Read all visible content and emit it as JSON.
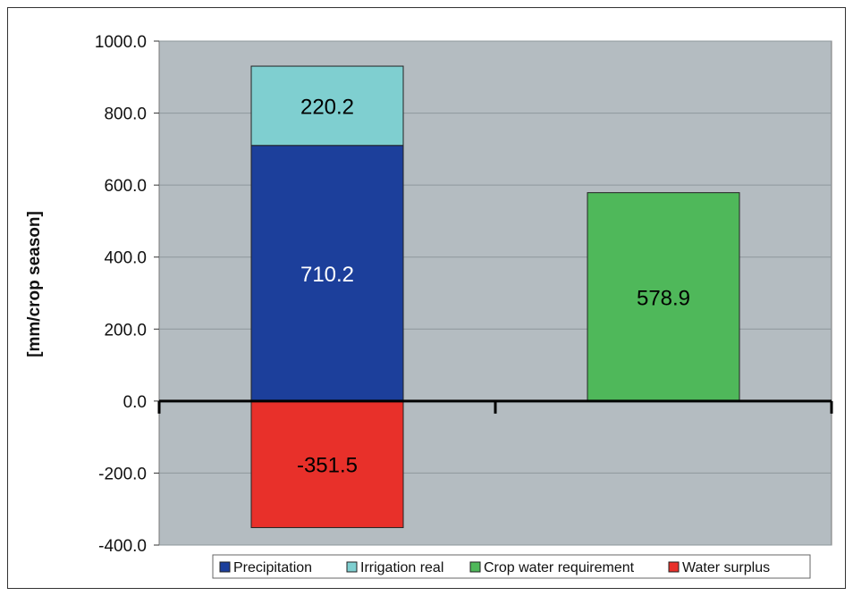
{
  "chart_data": {
    "type": "bar",
    "stacked": true,
    "title": "",
    "xlabel": "",
    "ylabel": "[mm/crop season]",
    "ylim": [
      -400,
      1000
    ],
    "ytick_step": 200,
    "ytick_labels": [
      "1000.0",
      "800.0",
      "600.0",
      "400.0",
      "200.0",
      "0.0",
      "-200.0",
      "-400.0"
    ],
    "grid": true,
    "legend_position": "bottom",
    "categories": [
      "",
      ""
    ],
    "series": [
      {
        "name": "Precipitation",
        "values": [
          710.2,
          null
        ],
        "color": "#1c3f9b",
        "label_color": "#ffffff",
        "labels": [
          "710.2",
          ""
        ]
      },
      {
        "name": "Irrigation real",
        "values": [
          220.2,
          null
        ],
        "color": "#7fcfd0",
        "label_color": "#000000",
        "labels": [
          "220.2",
          ""
        ]
      },
      {
        "name": "Crop water requirement",
        "values": [
          null,
          578.9
        ],
        "color": "#4fb85a",
        "label_color": "#000000",
        "labels": [
          "",
          "578.9"
        ]
      },
      {
        "name": "Water surplus",
        "values": [
          -351.5,
          null
        ],
        "color": "#e8302a",
        "label_color": "#000000",
        "labels": [
          "-351.5",
          ""
        ]
      }
    ],
    "plot_background": "#b4bcc1",
    "gridline_color": "#8e979c"
  }
}
